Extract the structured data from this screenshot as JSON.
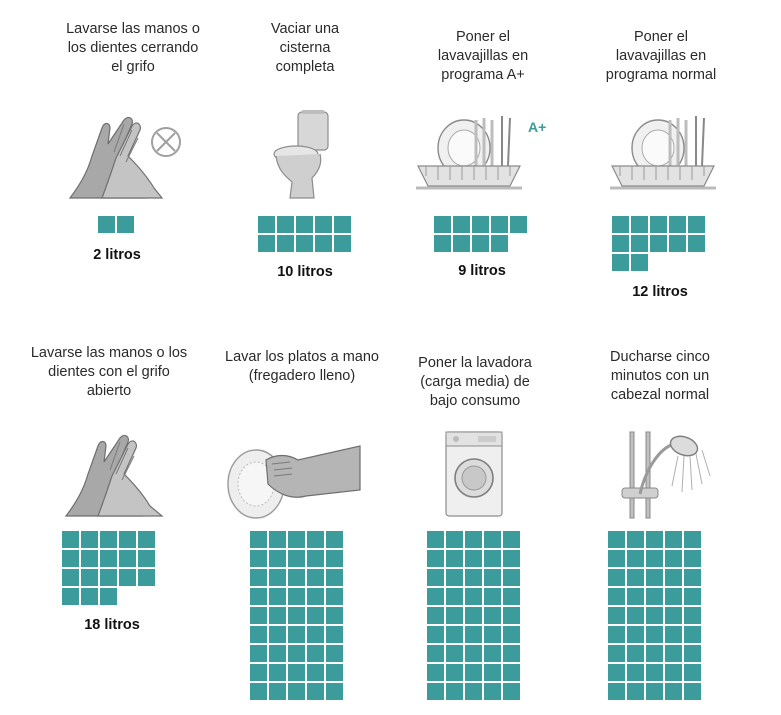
{
  "colors": {
    "accent": "#3c9b9b",
    "illustration": "#9a9a9a"
  },
  "items": [
    {
      "title": "Lavarse las manos o\nlos dientes cerrando\nel grifo",
      "liters": 2,
      "litres_label": "2 litros",
      "icon": "hands-washing-tap-closed-icon",
      "badge": ""
    },
    {
      "title": "Vaciar una\ncisterna\ncompleta",
      "liters": 10,
      "litres_label": "10 litros",
      "icon": "toilet-icon",
      "badge": ""
    },
    {
      "title": "Poner el\nlavavajillas en\nprograma A+",
      "liters": 9,
      "litres_label": "9 litros",
      "icon": "dish-rack-icon",
      "badge": "A+"
    },
    {
      "title": "Poner el\nlavavajillas en\nprograma normal",
      "liters": 12,
      "litres_label": "12 litros",
      "icon": "dish-rack-icon",
      "badge": ""
    },
    {
      "title": "Lavarse las manos o los\ndientes con el grifo\nabierto",
      "liters": 18,
      "litres_label": "18 litros",
      "icon": "hands-washing-icon",
      "badge": ""
    },
    {
      "title": "Lavar los platos a mano\n(fregadero lleno)",
      "liters": 50,
      "litres_label": "",
      "icon": "hand-washing-plate-icon",
      "badge": ""
    },
    {
      "title": "Poner la lavadora\n(carga media) de\nbajo consumo",
      "liters": 50,
      "litres_label": "",
      "icon": "washing-machine-icon",
      "badge": ""
    },
    {
      "title": "Ducharse cinco\nminutos con un\ncabezal normal",
      "liters": 50,
      "litres_label": "",
      "icon": "shower-head-icon",
      "badge": ""
    }
  ]
}
